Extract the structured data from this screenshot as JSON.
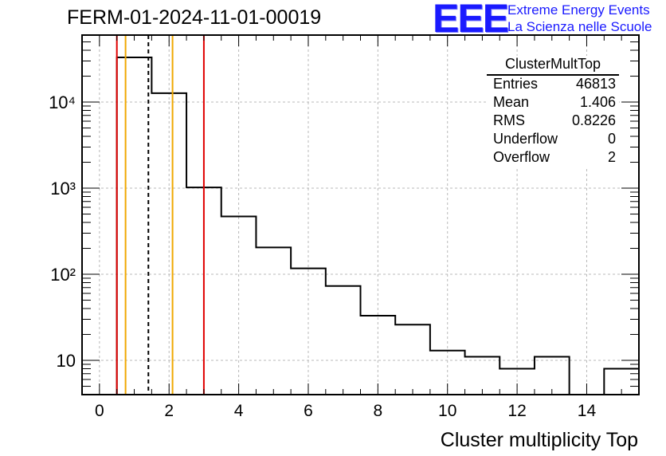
{
  "title": "FERM-01-2024-11-01-00019",
  "logo": {
    "mark": "EEE",
    "line1": "Extreme Energy Events",
    "line2": "La Scienza nelle Scuole"
  },
  "stats_box": {
    "name": "ClusterMultTop",
    "rows": [
      {
        "label": "Entries",
        "value": "46813"
      },
      {
        "label": "Mean",
        "value": "1.406"
      },
      {
        "label": "RMS",
        "value": "0.8226"
      },
      {
        "label": "Underflow",
        "value": "0"
      },
      {
        "label": "Overflow",
        "value": "2"
      }
    ]
  },
  "chart_data": {
    "type": "histogram",
    "xlabel": "Cluster multiplicity Top",
    "ylabel": "",
    "xlim": [
      -0.5,
      15.5
    ],
    "ylim": [
      4,
      60000
    ],
    "y_scale": "log",
    "grid": true,
    "x_ticks": [
      0,
      2,
      4,
      6,
      8,
      10,
      12,
      14
    ],
    "y_ticks": [
      {
        "value": 10,
        "label": "10"
      },
      {
        "value": 100,
        "label": "10²"
      },
      {
        "value": 1000,
        "label": "10³"
      },
      {
        "value": 10000,
        "label": "10⁴"
      }
    ],
    "bin_width": 1,
    "bin_centers": [
      0,
      1,
      2,
      3,
      4,
      5,
      6,
      7,
      8,
      9,
      10,
      11,
      12,
      13,
      14,
      15
    ],
    "counts": [
      0,
      33000,
      12700,
      1020,
      470,
      205,
      117,
      73,
      33,
      26,
      13,
      11,
      8,
      11,
      0,
      8
    ],
    "markers": [
      {
        "x": 0.5,
        "color": "#e00000",
        "style": "solid"
      },
      {
        "x": 0.75,
        "color": "#f0a800",
        "style": "solid"
      },
      {
        "x": 1.406,
        "color": "#000000",
        "style": "dashed"
      },
      {
        "x": 2.1,
        "color": "#f0a800",
        "style": "solid"
      },
      {
        "x": 3.0,
        "color": "#e00000",
        "style": "solid"
      }
    ]
  }
}
